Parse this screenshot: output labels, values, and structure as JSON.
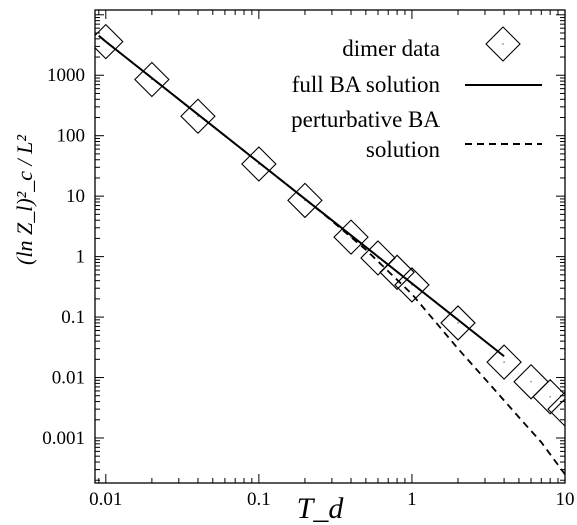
{
  "chart_data": {
    "type": "scatter",
    "x_scale": "log",
    "y_scale": "log",
    "xlim": [
      0.0085,
      10
    ],
    "ylim": [
      0.00018,
      12000
    ],
    "grid": false,
    "legend_position": "top-right",
    "xlabel": "T_d",
    "ylabel": "(ln Z_l)²_c / L²",
    "x_ticks": [
      {
        "value": 0.01,
        "label": "0.01"
      },
      {
        "value": 0.1,
        "label": "0.1"
      },
      {
        "value": 1,
        "label": "1"
      },
      {
        "value": 10,
        "label": "10"
      }
    ],
    "y_ticks": [
      {
        "value": 1000,
        "label": "1000"
      },
      {
        "value": 100,
        "label": "100"
      },
      {
        "value": 10,
        "label": "10"
      },
      {
        "value": 1,
        "label": "1"
      },
      {
        "value": 0.1,
        "label": "0.1"
      },
      {
        "value": 0.01,
        "label": "0.01"
      },
      {
        "value": 0.001,
        "label": "0.001"
      }
    ],
    "series": [
      {
        "name": "dimer data",
        "style": "diamond",
        "x": [
          0.01,
          0.02,
          0.04,
          0.1,
          0.2,
          0.4,
          0.6,
          0.8,
          1,
          2,
          4,
          6,
          8,
          10
        ],
        "y": [
          3600,
          850,
          210,
          34,
          8.5,
          2.1,
          0.95,
          0.55,
          0.34,
          0.08,
          0.018,
          0.0085,
          0.0048,
          0.003
        ]
      },
      {
        "name": "full BA solution",
        "style": "solid",
        "x": [
          0.009,
          0.01,
          0.02,
          0.04,
          0.1,
          0.2,
          0.4,
          0.6,
          1,
          2,
          4
        ],
        "y": [
          4500,
          3600,
          900,
          225,
          36,
          9,
          2.25,
          1.0,
          0.36,
          0.09,
          0.0225
        ]
      },
      {
        "name": "perturbative BA solution",
        "style": "dashed",
        "x": [
          0.009,
          0.01,
          0.02,
          0.04,
          0.1,
          0.2,
          0.3,
          0.5,
          1,
          2,
          3,
          5,
          7,
          10
        ],
        "y": [
          4500,
          3600,
          900,
          225,
          36,
          9,
          3.9,
          1.3,
          0.24,
          0.03,
          0.0095,
          0.0022,
          0.00085,
          0.00025
        ]
      }
    ],
    "legend": [
      {
        "label_lines": [
          "dimer data"
        ],
        "style": "diamond"
      },
      {
        "label_lines": [
          "full BA solution"
        ],
        "style": "solid"
      },
      {
        "label_lines": [
          "perturbative BA",
          "solution"
        ],
        "style": "dashed"
      }
    ]
  }
}
